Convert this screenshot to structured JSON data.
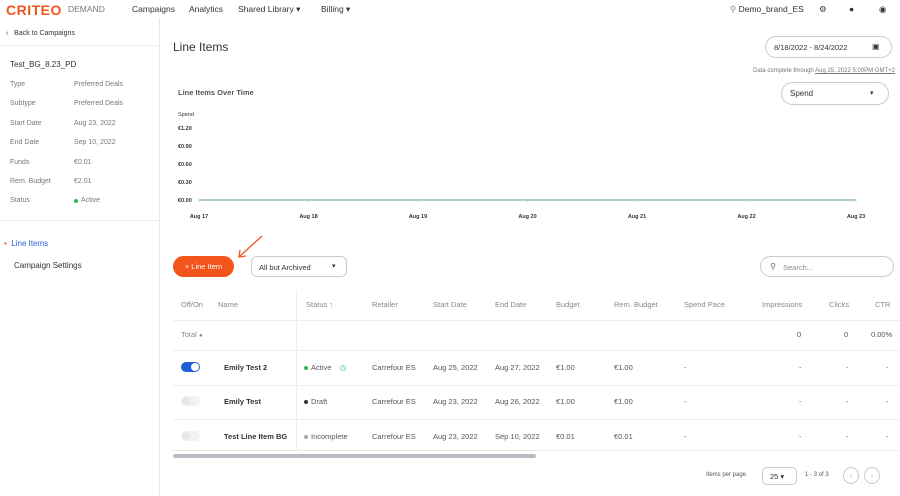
{
  "nav": {
    "logo": "CRITEO",
    "product": "DEMAND",
    "items": [
      {
        "label": "Campaigns"
      },
      {
        "label": "Analytics"
      },
      {
        "label": "Shared Library ▾"
      },
      {
        "label": "Billing ▾"
      }
    ],
    "account": "Demo_brand_ES"
  },
  "sidebar": {
    "back": "Back to Campaigns",
    "campaign_name": "Test_BG_8.23_PD",
    "details": [
      {
        "label": "Type",
        "value": "Preferred Deals"
      },
      {
        "label": "Subtype",
        "value": "Preferred Deals"
      },
      {
        "label": "Start Date",
        "value": "Aug 23, 2022"
      },
      {
        "label": "End Date",
        "value": "Sep 10, 2022"
      },
      {
        "label": "Funds",
        "value": "€0.01"
      },
      {
        "label": "Rem. Budget",
        "value": "€2.01"
      },
      {
        "label": "Status",
        "value": "Active"
      }
    ],
    "menu": [
      {
        "label": "Line Items"
      },
      {
        "label": "Campaign Settings"
      }
    ]
  },
  "main": {
    "title": "Line Items",
    "date_range": "8/18/2022 - 8/24/2022",
    "data_complete_prefix": "Data complete through",
    "data_complete_date": "Aug 25, 2022 5:00PM GMT+2",
    "metric_select": "Spend",
    "add_button": "+ Line Item",
    "filter": "All but Archived",
    "search_placeholder": "Search...",
    "table": {
      "headers": [
        "Off/On",
        "Name",
        "Status ↑",
        "Retailer",
        "Start Date",
        "End Date",
        "Budget",
        "Rem. Budget",
        "Spend Pace",
        "Impressions",
        "Clicks",
        "CTR"
      ],
      "total": {
        "label": "Total",
        "impressions": "0",
        "clicks": "0",
        "ctr": "0.00%"
      },
      "rows": [
        {
          "on": true,
          "name": "Emily Test 2",
          "status": "Active",
          "status_color": "#2eb85c",
          "retailer": "Carrefour ES",
          "start": "Aug 25, 2022",
          "end": "Aug 27, 2022",
          "budget": "€1.00",
          "rem": "€1.00",
          "pace": "-",
          "impr": "-",
          "clicks": "-",
          "ctr": "-"
        },
        {
          "on": false,
          "name": "Emily Test",
          "status": "Draft",
          "status_color": "#333333",
          "retailer": "Carrefour ES",
          "start": "Aug 23, 2022",
          "end": "Aug 26, 2022",
          "budget": "€1.00",
          "rem": "€1.00",
          "pace": "-",
          "impr": "-",
          "clicks": "-",
          "ctr": "-"
        },
        {
          "on": false,
          "name": "Test Line Item BG",
          "status": "Incomplete",
          "status_color": "#aaaaaa",
          "retailer": "Carrefour ES",
          "start": "Aug 23, 2022",
          "end": "Sep 10, 2022",
          "budget": "€0.01",
          "rem": "€0.01",
          "pace": "-",
          "impr": "-",
          "clicks": "-",
          "ctr": "-"
        }
      ]
    },
    "pagination": {
      "label": "Items per page",
      "per_page": "25 ▾",
      "range": "1 - 3 of 3"
    }
  },
  "chart_data": {
    "type": "line",
    "title": "Line Items Over Time",
    "ylabel": "Spend",
    "categories": [
      "Aug 17",
      "Aug 18",
      "Aug 19",
      "Aug 20",
      "Aug 21",
      "Aug 22",
      "Aug 23"
    ],
    "values": [
      0,
      0,
      0,
      0,
      0,
      0,
      0
    ],
    "yticks": [
      "€0.00",
      "€0.30",
      "€0.60",
      "€0.90",
      "€1.20"
    ],
    "ylim": [
      0,
      1.2
    ],
    "color": "#8fc2b5"
  },
  "colors": {
    "accent": "#f2541b",
    "toggle_on": "#1f5fd6",
    "link": "#2c5bd6"
  }
}
